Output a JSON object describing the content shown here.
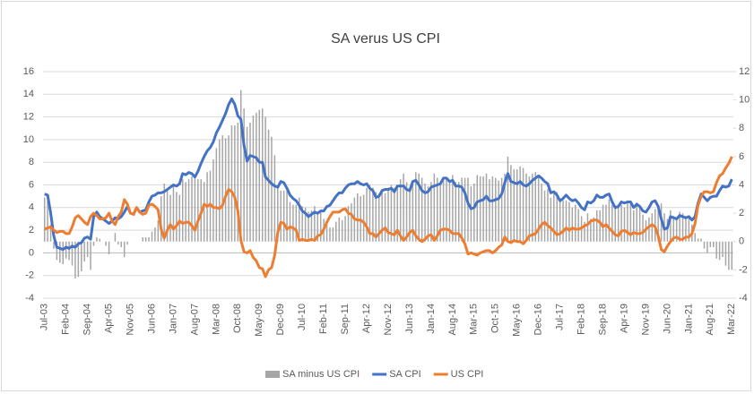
{
  "chart_data": {
    "type": "combo",
    "title": "SA verus US CPI",
    "categories": [
      "Jul-03",
      null,
      null,
      null,
      null,
      null,
      null,
      "Feb-04",
      null,
      null,
      null,
      null,
      null,
      null,
      "Sep-04",
      null,
      null,
      null,
      null,
      null,
      null,
      "Apr-05",
      null,
      null,
      null,
      null,
      null,
      null,
      "Nov-05",
      null,
      null,
      null,
      null,
      null,
      null,
      "Jun-06",
      null,
      null,
      null,
      null,
      null,
      null,
      "Jan-07",
      null,
      null,
      null,
      null,
      null,
      null,
      "Aug-07",
      null,
      null,
      null,
      null,
      null,
      null,
      "Mar-08",
      null,
      null,
      null,
      null,
      null,
      null,
      "Oct-08",
      null,
      null,
      null,
      null,
      null,
      null,
      "May-09",
      null,
      null,
      null,
      null,
      null,
      null,
      "Dec-09",
      null,
      null,
      null,
      null,
      null,
      null,
      "Jul-10",
      null,
      null,
      null,
      null,
      null,
      null,
      "Feb-11",
      null,
      null,
      null,
      null,
      null,
      null,
      "Sep-11",
      null,
      null,
      null,
      null,
      null,
      null,
      "Apr-12",
      null,
      null,
      null,
      null,
      null,
      null,
      "Nov-12",
      null,
      null,
      null,
      null,
      null,
      null,
      "Jun-13",
      null,
      null,
      null,
      null,
      null,
      null,
      "Jan-14",
      null,
      null,
      null,
      null,
      null,
      null,
      "Aug-14",
      null,
      null,
      null,
      null,
      null,
      null,
      "Mar-15",
      null,
      null,
      null,
      null,
      null,
      null,
      "Oct-15",
      null,
      null,
      null,
      null,
      null,
      null,
      "May-16",
      null,
      null,
      null,
      null,
      null,
      null,
      "Dec-16",
      null,
      null,
      null,
      null,
      null,
      null,
      "Jul-17",
      null,
      null,
      null,
      null,
      null,
      null,
      "Feb-18",
      null,
      null,
      null,
      null,
      null,
      null,
      "Sep-18",
      null,
      null,
      null,
      null,
      null,
      null,
      "Apr-19",
      null,
      null,
      null,
      null,
      null,
      null,
      "Nov-19",
      null,
      null,
      null,
      null,
      null,
      null,
      "Jun-20",
      null,
      null,
      null,
      null,
      null,
      null,
      "Jan-21",
      null,
      null,
      null,
      null,
      null,
      null,
      "Aug-21",
      null,
      null,
      null,
      null,
      null,
      null,
      "Mar-22"
    ],
    "series": [
      {
        "name": "SA minus US CPI",
        "type": "bar",
        "axis": "y2",
        "color": "#a6a6a6",
        "values": [
          3.1,
          2.9,
          1.2,
          -0.5,
          -1.3,
          -1.5,
          -1.6,
          -1.2,
          -1.3,
          -1.7,
          -2.6,
          -2.5,
          -2.1,
          -1.4,
          -1.1,
          -2.0,
          -0.3,
          0.3,
          0.2,
          0.0,
          -0.3,
          -0.9,
          0.0,
          0.6,
          -0.2,
          -0.4,
          -1.1,
          -0.2,
          0.0,
          0.0,
          0.0,
          0.0,
          0.3,
          0.3,
          0.3,
          0.7,
          1.0,
          1.5,
          3.2,
          4.1,
          3.6,
          3.3,
          3.9,
          3.5,
          3.3,
          4.4,
          4.2,
          4.4,
          4.6,
          4.7,
          4.4,
          4.4,
          4.2,
          4.9,
          5.0,
          5.8,
          6.6,
          7.2,
          7.5,
          7.3,
          7.5,
          8.2,
          8.2,
          8.4,
          10.7,
          9.4,
          8.1,
          8.4,
          8.9,
          9.1,
          9.3,
          9.4,
          8.8,
          7.9,
          7.4,
          6.1,
          4.0,
          3.6,
          3.6,
          3.6,
          2.8,
          2.6,
          2.6,
          3.1,
          2.5,
          2.4,
          2.1,
          2.2,
          2.5,
          2.0,
          2.1,
          1.6,
          1.4,
          1.0,
          1.0,
          1.4,
          1.7,
          1.5,
          1.8,
          2.5,
          2.7,
          3.1,
          3.4,
          3.2,
          3.3,
          3.8,
          4.0,
          3.8,
          3.5,
          3.3,
          3.5,
          3.4,
          3.8,
          4.0,
          3.8,
          3.9,
          4.4,
          4.8,
          4.2,
          3.7,
          4.3,
          4.9,
          4.8,
          4.5,
          4.1,
          3.9,
          4.2,
          4.8,
          4.5,
          4.1,
          4.5,
          4.5,
          4.3,
          4.7,
          4.2,
          4.2,
          4.5,
          4.5,
          4.5,
          3.9,
          4.1,
          4.7,
          4.6,
          4.6,
          4.8,
          4.4,
          4.6,
          4.5,
          4.3,
          4.5,
          4.8,
          6.0,
          5.4,
          5.1,
          5.1,
          5.3,
          5.2,
          4.8,
          4.6,
          4.8,
          4.9,
          4.7,
          4.1,
          3.6,
          3.7,
          3.1,
          3.5,
          3.5,
          2.9,
          2.9,
          2.9,
          2.8,
          2.4,
          2.6,
          2.3,
          1.8,
          1.4,
          2.0,
          1.6,
          1.7,
          2.2,
          2.2,
          2.6,
          2.6,
          3.0,
          2.6,
          2.4,
          2.6,
          2.6,
          2.4,
          2.7,
          2.9,
          2.2,
          2.6,
          2.4,
          1.9,
          1.5,
          1.7,
          2.0,
          2.3,
          2.6,
          2.7,
          2.0,
          1.6,
          2.2,
          1.8,
          1.6,
          2.1,
          2.0,
          1.7,
          1.8,
          1.2,
          0.6,
          0.2,
          0.2,
          -0.5,
          -0.8,
          -0.4,
          -0.4,
          -1.2,
          -1.3,
          -1.1,
          -1.7,
          -2.0,
          -2.0
        ]
      },
      {
        "name": "SA CPI",
        "type": "line",
        "color": "#4472c4",
        "values": [
          5.2,
          5.1,
          3.5,
          1.5,
          0.5,
          0.4,
          0.3,
          0.5,
          0.4,
          0.6,
          0.5,
          0.8,
          0.9,
          1.3,
          1.4,
          1.2,
          3.2,
          3.6,
          3.2,
          3.0,
          2.8,
          2.6,
          2.8,
          3.1,
          3.0,
          3.2,
          3.6,
          4.1,
          3.5,
          3.4,
          4.0,
          3.6,
          3.7,
          3.8,
          4.5,
          5.0,
          5.1,
          5.3,
          5.3,
          5.4,
          5.6,
          5.8,
          6.0,
          5.9,
          6.1,
          7.0,
          6.9,
          7.1,
          7.0,
          6.7,
          7.2,
          7.9,
          8.5,
          9.0,
          9.3,
          9.8,
          10.6,
          11.1,
          11.7,
          12.3,
          13.1,
          13.6,
          13.1,
          12.1,
          11.8,
          9.5,
          8.1,
          8.6,
          8.5,
          8.4,
          8.0,
          8.0,
          6.7,
          6.4,
          6.1,
          5.9,
          5.8,
          6.3,
          6.2,
          5.7,
          5.1,
          4.8,
          4.6,
          4.2,
          3.7,
          3.5,
          3.2,
          3.4,
          3.6,
          3.5,
          3.7,
          3.7,
          4.1,
          4.2,
          4.6,
          5.0,
          5.3,
          5.3,
          5.7,
          6.0,
          6.1,
          6.1,
          6.3,
          6.1,
          6.0,
          6.1,
          5.7,
          5.5,
          4.9,
          5.0,
          5.5,
          5.6,
          5.6,
          5.7,
          5.4,
          5.9,
          5.9,
          5.9,
          5.6,
          5.5,
          6.3,
          6.4,
          6.0,
          5.5,
          5.3,
          5.4,
          5.8,
          5.9,
          6.0,
          6.1,
          6.6,
          6.6,
          6.3,
          6.4,
          5.9,
          5.9,
          5.8,
          5.3,
          4.4,
          3.9,
          4.0,
          4.5,
          4.6,
          4.7,
          5.0,
          4.6,
          4.6,
          4.7,
          4.8,
          5.2,
          6.2,
          7.0,
          6.3,
          6.2,
          6.1,
          6.3,
          6.0,
          5.9,
          6.1,
          6.4,
          6.6,
          6.8,
          6.6,
          6.3,
          6.1,
          5.3,
          5.4,
          5.1,
          4.6,
          4.8,
          5.1,
          4.8,
          4.6,
          4.7,
          4.4,
          4.0,
          3.8,
          4.5,
          4.4,
          4.6,
          5.1,
          4.9,
          4.9,
          5.1,
          5.2,
          4.5,
          4.0,
          4.1,
          4.5,
          4.4,
          4.5,
          4.5,
          4.0,
          4.3,
          4.1,
          3.7,
          3.6,
          4.0,
          4.5,
          4.6,
          4.1,
          3.0,
          2.1,
          2.2,
          3.2,
          3.1,
          3.0,
          3.3,
          3.2,
          3.1,
          3.2,
          2.9,
          3.2,
          4.4,
          5.2,
          4.9,
          4.6,
          4.9,
          5.0,
          5.0,
          5.5,
          5.9,
          5.8,
          5.9,
          6.5
        ]
      },
      {
        "name": "US CPI",
        "type": "line",
        "color": "#ed7d31",
        "values": [
          2.1,
          2.2,
          2.3,
          2.0,
          1.8,
          1.9,
          1.9,
          1.7,
          1.7,
          2.3,
          3.1,
          3.3,
          3.0,
          2.7,
          2.5,
          3.2,
          3.5,
          3.3,
          3.0,
          3.0,
          3.1,
          3.5,
          2.8,
          2.5,
          3.2,
          3.6,
          4.7,
          4.3,
          3.5,
          3.4,
          4.0,
          3.6,
          3.4,
          3.5,
          4.2,
          4.3,
          4.1,
          3.8,
          2.1,
          1.3,
          2.0,
          2.5,
          2.1,
          2.4,
          2.8,
          2.6,
          2.7,
          2.7,
          2.4,
          2.0,
          2.8,
          3.5,
          4.3,
          4.1,
          4.3,
          4.0,
          4.0,
          3.9,
          4.2,
          5.0,
          5.6,
          5.4,
          4.9,
          3.7,
          1.1,
          0.1,
          0.0,
          0.2,
          -0.4,
          -0.7,
          -1.3,
          -1.4,
          -2.1,
          -1.5,
          -1.3,
          -0.2,
          1.8,
          2.7,
          2.6,
          2.1,
          2.3,
          2.2,
          2.0,
          1.1,
          1.2,
          1.1,
          1.1,
          1.2,
          1.1,
          1.5,
          1.6,
          2.1,
          2.7,
          3.2,
          3.6,
          3.6,
          3.6,
          3.8,
          3.9,
          3.5,
          3.4,
          3.0,
          2.9,
          2.9,
          2.7,
          2.3,
          1.7,
          1.7,
          1.4,
          1.7,
          2.0,
          2.2,
          1.8,
          1.7,
          1.6,
          2.0,
          1.5,
          1.1,
          1.4,
          1.8,
          2.0,
          1.5,
          1.2,
          1.0,
          1.2,
          1.5,
          1.6,
          1.1,
          1.5,
          2.0,
          2.1,
          2.1,
          2.0,
          1.7,
          1.7,
          1.7,
          1.3,
          0.8,
          -0.1,
          0.0,
          -0.1,
          -0.2,
          0.0,
          0.1,
          0.2,
          0.2,
          0.0,
          0.2,
          0.5,
          0.7,
          1.4,
          1.0,
          0.9,
          1.1,
          1.0,
          1.0,
          0.8,
          1.1,
          1.5,
          1.6,
          1.7,
          2.1,
          2.5,
          2.7,
          2.4,
          2.2,
          1.9,
          1.6,
          1.7,
          1.9,
          2.2,
          2.0,
          2.2,
          2.1,
          2.1,
          2.2,
          2.4,
          2.5,
          2.8,
          2.9,
          2.9,
          2.7,
          2.3,
          2.5,
          2.2,
          1.9,
          1.6,
          1.5,
          1.9,
          2.0,
          1.8,
          1.6,
          1.8,
          1.7,
          1.7,
          1.8,
          2.1,
          2.3,
          2.5,
          2.3,
          1.5,
          0.3,
          0.1,
          0.6,
          1.0,
          1.3,
          1.4,
          1.2,
          1.2,
          1.4,
          1.4,
          1.7,
          2.6,
          4.2,
          5.0,
          5.4,
          5.4,
          5.3,
          5.4,
          6.2,
          6.8,
          7.0,
          7.5,
          7.9,
          8.5
        ]
      }
    ],
    "ylim": [
      -4,
      16
    ],
    "yticks": [
      -4,
      -2,
      0,
      2,
      4,
      6,
      8,
      10,
      12,
      14,
      16
    ],
    "y2lim": [
      -4,
      12
    ],
    "y2ticks": [
      -4,
      -2,
      0,
      2,
      4,
      6,
      8,
      10,
      12
    ],
    "grid": true,
    "legend": "bottom"
  }
}
